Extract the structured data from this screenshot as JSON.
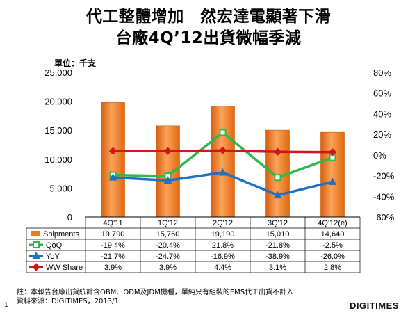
{
  "titles": {
    "line1": "代工整體增加　然宏達電顯著下滑",
    "line2": "台廠4Q’12出貨微幅季減",
    "unit": "單位：千支"
  },
  "footnote": {
    "line1": "註：本報告台廠出貨統計含OBM、ODM及JDM機種，單純只有組裝的EMS代工出貨不計入",
    "line2": "資料來源：DIGITIMES，2013/1"
  },
  "page_number": "1",
  "logo_text": "DIGITIMES",
  "colors": {
    "shipments": "#F07A22",
    "qoq": "#2DB84B",
    "yoy": "#1F6FC4",
    "share": "#D0161B"
  },
  "chart_data": {
    "type": "bar",
    "categories": [
      "4Q'11",
      "1Q'12",
      "2Q'12",
      "3Q'12",
      "4Q'12(e)"
    ],
    "left_axis": {
      "min": 0,
      "max": 25000,
      "ticks": [
        "25,000",
        "20,000",
        "15,000",
        "10,000",
        "5,000",
        "0"
      ]
    },
    "right_axis": {
      "min": -60,
      "max": 80,
      "ticks": [
        "80%",
        "60%",
        "40%",
        "20%",
        "0%",
        "-20%",
        "-40%",
        "-60%"
      ]
    },
    "series": [
      {
        "name": "Shipments",
        "type": "bar",
        "axis": "left",
        "values": [
          19790,
          15760,
          19190,
          15010,
          14640
        ],
        "labels": [
          "19,790",
          "15,760",
          "19,190",
          "15,010",
          "14,640"
        ]
      },
      {
        "name": "QoQ",
        "type": "line",
        "axis": "right",
        "values": [
          -19.4,
          -20.4,
          21.8,
          -21.8,
          -2.5
        ],
        "labels": [
          "-19.4%",
          "-20.4%",
          "21.8%",
          "-21.8%",
          "-2.5%"
        ]
      },
      {
        "name": "YoY",
        "type": "line",
        "axis": "right",
        "values": [
          -21.7,
          -24.7,
          -16.9,
          -38.9,
          -26.0
        ],
        "labels": [
          "-21.7%",
          "-24.7%",
          "-16.9%",
          "-38.9%",
          "-26.0%"
        ]
      },
      {
        "name": "WW Share",
        "type": "line",
        "axis": "right",
        "values": [
          3.9,
          3.9,
          4.4,
          3.1,
          2.8
        ],
        "labels": [
          "3.9%",
          "3.9%",
          "4.4%",
          "3.1%",
          "2.8%"
        ]
      }
    ]
  }
}
